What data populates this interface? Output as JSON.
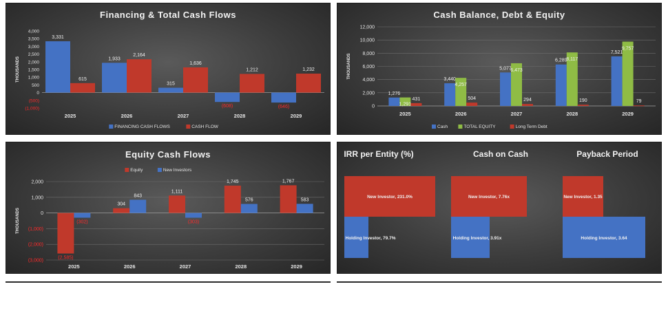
{
  "colors": {
    "blue": "#4472c4",
    "red": "#c0392b",
    "green": "#8fbc45",
    "neg_label": "#ff2a2a",
    "text": "#f2f2f2",
    "axis_text": "#e6e6e6",
    "grid": "#6e6e6e"
  },
  "chart_data": [
    {
      "type": "bar",
      "title": "Financing & Total Cash Flows",
      "ylabel": "THOUSANDS",
      "categories": [
        "2025",
        "2026",
        "2027",
        "2028",
        "2029"
      ],
      "ylim": [
        -1000,
        4000
      ],
      "yticks": [
        "4,000",
        "3,500",
        "3,000",
        "2,500",
        "2,000",
        "1,500",
        "1,000",
        "500",
        "0",
        "(500)",
        "(1,000)"
      ],
      "ytick_values": [
        4000,
        3500,
        3000,
        2500,
        2000,
        1500,
        1000,
        500,
        0,
        -500,
        -1000
      ],
      "grid": false,
      "legend_position": "bottom",
      "series": [
        {
          "name": "FINANCING CASH FLOWS",
          "color": "#4472c4",
          "values": [
            3331,
            1933,
            315,
            -608,
            -646
          ],
          "labels": [
            "3,331",
            "1,933",
            "315",
            "(608)",
            "(646)"
          ]
        },
        {
          "name": "CASH FLOW",
          "color": "#c0392b",
          "values": [
            615,
            2164,
            1636,
            1212,
            1232
          ],
          "labels": [
            "615",
            "2,164",
            "1,636",
            "1,212",
            "1,232"
          ]
        }
      ]
    },
    {
      "type": "bar",
      "title": "Cash Balance, Debt & Equity",
      "ylabel": "THOUSANDS",
      "categories": [
        "2025",
        "2026",
        "2027",
        "2028",
        "2029"
      ],
      "ylim": [
        0,
        12000
      ],
      "yticks": [
        "12,000",
        "10,000",
        "8,000",
        "6,000",
        "4,000",
        "2,000",
        "0"
      ],
      "ytick_values": [
        12000,
        10000,
        8000,
        6000,
        4000,
        2000,
        0
      ],
      "grid": true,
      "legend_position": "bottom",
      "series": [
        {
          "name": "Cash",
          "color": "#4472c4",
          "values": [
            1276,
            3440,
            5077,
            6289,
            7521
          ],
          "labels": [
            "1,276",
            "3,440",
            "5,077",
            "6,289",
            "7,521"
          ]
        },
        {
          "name": "TOTAL EQUITY",
          "color": "#8fbc45",
          "values": [
            1291,
            4257,
            6473,
            8117,
            9757
          ],
          "labels": [
            "1,291",
            "4,257",
            "6,473",
            "8,117",
            "9,757"
          ]
        },
        {
          "name": "Long Term Debt",
          "color": "#c0392b",
          "values": [
            431,
            504,
            294,
            190,
            79
          ],
          "labels": [
            "431",
            "504",
            "294",
            "190",
            "79"
          ]
        }
      ]
    },
    {
      "type": "bar",
      "title": "Equity Cash Flows",
      "ylabel": "THOUSANDS",
      "categories": [
        "2025",
        "2026",
        "2027",
        "2028",
        "2029"
      ],
      "ylim": [
        -3000,
        2000
      ],
      "yticks": [
        "2,000",
        "1,000",
        "0",
        "(1,000)",
        "(2,000)",
        "(3,000)"
      ],
      "ytick_values": [
        2000,
        1000,
        0,
        -1000,
        -2000,
        -3000
      ],
      "grid": true,
      "legend_position": "top",
      "series": [
        {
          "name": "Equity",
          "color": "#c0392b",
          "values": [
            -2585,
            304,
            1111,
            1745,
            1767
          ],
          "labels": [
            "(2,585)",
            "304",
            "1,111",
            "1,745",
            "1,767"
          ]
        },
        {
          "name": "New Investors",
          "color": "#4472c4",
          "values": [
            -302,
            843,
            -303,
            576,
            583
          ],
          "labels": [
            "(302)",
            "843",
            "(303)",
            "576",
            "583"
          ]
        }
      ]
    },
    {
      "type": "bar",
      "title": "IRR per Entity (%)",
      "series": [
        {
          "name": "New Investor",
          "color": "#c0392b",
          "value": 231.0,
          "label": "New Investor, 231.0%"
        },
        {
          "name": "Holding Investor",
          "color": "#4472c4",
          "value": 79.7,
          "label": "Holding Investor, 79.7%"
        }
      ]
    },
    {
      "type": "bar",
      "title": "Cash on Cash",
      "series": [
        {
          "name": "New Investor",
          "color": "#c0392b",
          "value": 7.76,
          "label": "New Investor, 7.76x"
        },
        {
          "name": "Holding Investor",
          "color": "#4472c4",
          "value": 3.91,
          "label": "Holding Investor, 3.91x"
        }
      ]
    },
    {
      "type": "bar",
      "title": "Payback Period",
      "series": [
        {
          "name": "New Investor",
          "color": "#c0392b",
          "value": 1.35,
          "label": "New Investor, 1.35"
        },
        {
          "name": "Holding Investor",
          "color": "#4472c4",
          "value": 3.64,
          "label": "Holding Investor, 3.64"
        }
      ]
    }
  ]
}
